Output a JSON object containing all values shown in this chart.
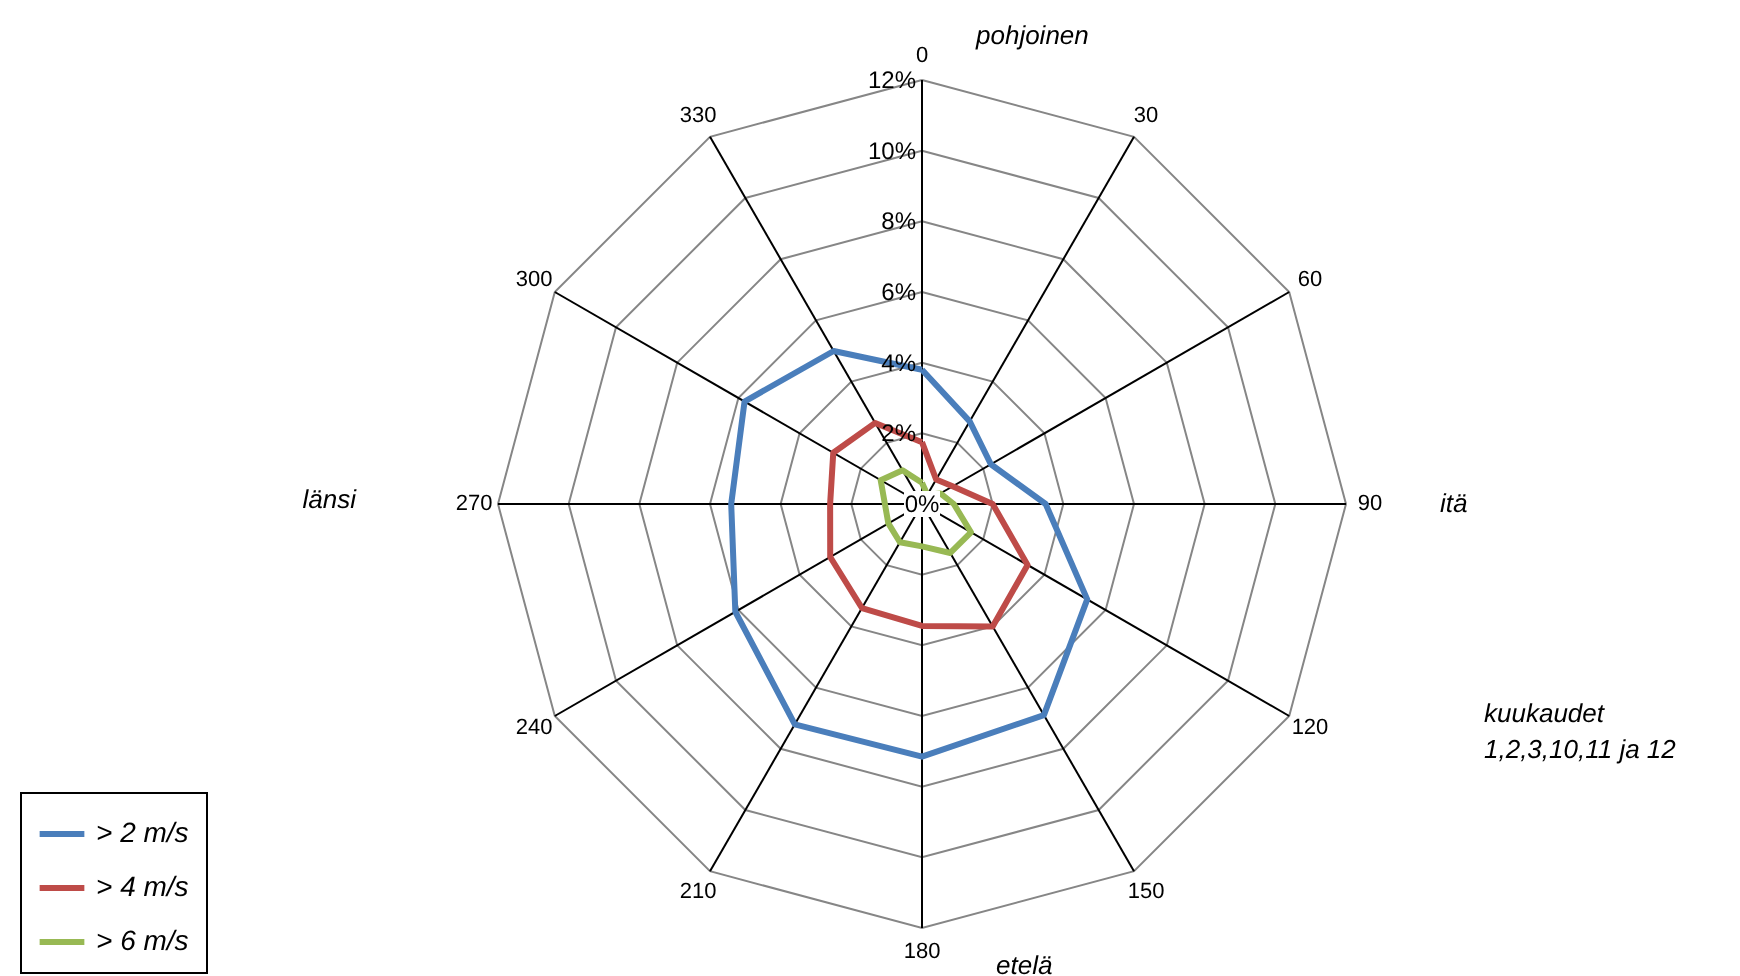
{
  "chart_data": {
    "type": "radar",
    "categories": [
      "0",
      "30",
      "60",
      "90",
      "120",
      "150",
      "180",
      "210",
      "240",
      "270",
      "300",
      "330"
    ],
    "series": [
      {
        "name": "> 2 m/s",
        "color": "#4a7ebb",
        "values": [
          3.8,
          2.7,
          2.25,
          3.5,
          5.4,
          6.9,
          7.15,
          7.2,
          6.1,
          5.4,
          5.8,
          5.0
        ]
      },
      {
        "name": "> 4 m/s",
        "color": "#be4b48",
        "values": [
          1.75,
          0.8,
          1.0,
          2.0,
          3.45,
          4.0,
          3.45,
          3.4,
          3.0,
          2.6,
          2.9,
          2.65
        ]
      },
      {
        "name": "> 6 m/s",
        "color": "#98b954",
        "values": [
          0.6,
          0.3,
          0.6,
          0.9,
          1.6,
          1.6,
          1.2,
          1.25,
          1.1,
          1.05,
          1.35,
          1.1
        ]
      }
    ],
    "ylim": [
      0,
      12
    ],
    "yticks": [
      {
        "value": 0,
        "label": "0%"
      },
      {
        "value": 2,
        "label": "2%"
      },
      {
        "value": 4,
        "label": "4%"
      },
      {
        "value": 6,
        "label": "6%"
      },
      {
        "value": 8,
        "label": "8%"
      },
      {
        "value": 10,
        "label": "10%"
      },
      {
        "value": 12,
        "label": "12%"
      }
    ],
    "grid": true,
    "legend": "bottom left",
    "annotations": [
      "pohjoinen",
      "itä",
      "etelä",
      "länsi",
      "kuukaudet 1,2,3,10,11 ja 12"
    ]
  }
}
